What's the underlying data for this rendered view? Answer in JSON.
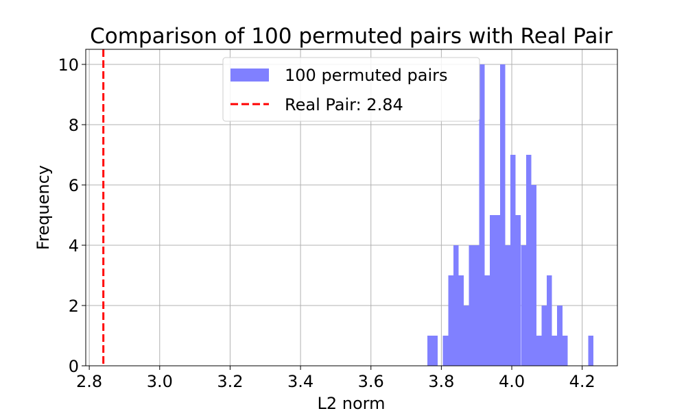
{
  "chart_data": {
    "type": "bar",
    "title": "Comparison of 100 permuted pairs with Real Pair",
    "xlabel": "L2 norm",
    "ylabel": "Frequency",
    "xlim": [
      2.79,
      4.3
    ],
    "ylim": [
      0,
      10.5
    ],
    "xticks": [
      "2.8",
      "3.0",
      "3.2",
      "3.4",
      "3.6",
      "3.8",
      "4.0",
      "4.2"
    ],
    "yticks": [
      "0",
      "2",
      "4",
      "6",
      "8",
      "10"
    ],
    "grid": true,
    "legend_position": "top-center",
    "series": [
      {
        "name": "100 permuted pairs",
        "color": "#8080ff",
        "bin_width": 0.01475,
        "bins": [
          {
            "x": 3.7603,
            "count": 1
          },
          {
            "x": 3.775,
            "count": 1
          },
          {
            "x": 3.8045,
            "count": 1
          },
          {
            "x": 3.8193,
            "count": 3
          },
          {
            "x": 3.834,
            "count": 4
          },
          {
            "x": 3.8488,
            "count": 3
          },
          {
            "x": 3.8635,
            "count": 2
          },
          {
            "x": 3.8783,
            "count": 4
          },
          {
            "x": 3.893,
            "count": 4
          },
          {
            "x": 3.9078,
            "count": 10
          },
          {
            "x": 3.9225,
            "count": 3
          },
          {
            "x": 3.9373,
            "count": 5
          },
          {
            "x": 3.952,
            "count": 5
          },
          {
            "x": 3.9668,
            "count": 10
          },
          {
            "x": 3.9815,
            "count": 4
          },
          {
            "x": 3.9963,
            "count": 7
          },
          {
            "x": 4.011,
            "count": 5
          },
          {
            "x": 4.0258,
            "count": 4
          },
          {
            "x": 4.0405,
            "count": 7
          },
          {
            "x": 4.0553,
            "count": 6
          },
          {
            "x": 4.07,
            "count": 1
          },
          {
            "x": 4.0848,
            "count": 2
          },
          {
            "x": 4.0995,
            "count": 3
          },
          {
            "x": 4.1143,
            "count": 1
          },
          {
            "x": 4.129,
            "count": 2
          },
          {
            "x": 4.1438,
            "count": 1
          },
          {
            "x": 4.2175,
            "count": 1
          }
        ]
      },
      {
        "name": "Real Pair: 2.84",
        "type": "vline",
        "x": 2.84,
        "color": "#ff0000",
        "style": "dashed"
      }
    ]
  }
}
